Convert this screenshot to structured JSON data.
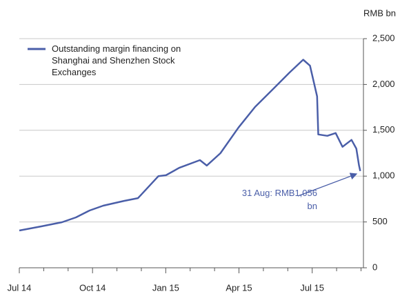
{
  "chart_data": {
    "type": "line",
    "y_axis_label": "RMB bn",
    "annotation": "31 Aug: RMB1,056 bn",
    "series": [
      {
        "name": "Outstanding margin financing on Shanghai and Shenzhen Stock Exchanges",
        "color": "#4a5ea8",
        "x": [
          0,
          0.9,
          1.75,
          2.32,
          2.88,
          3.44,
          4.29,
          4.86,
          5.0,
          5.7,
          6.01,
          6.55,
          7.4,
          7.68,
          8.24,
          8.98,
          9.66,
          10.36,
          11.07,
          11.63,
          11.91,
          12.2,
          12.25,
          12.62,
          12.96,
          13.24,
          13.61,
          13.81,
          13.92,
          13.97
        ],
        "values": [
          407,
          452,
          497,
          550,
          625,
          678,
          730,
          760,
          800,
          1000,
          1010,
          1090,
          1175,
          1115,
          1250,
          1530,
          1755,
          1940,
          2130,
          2270,
          2205,
          1870,
          1455,
          1440,
          1470,
          1320,
          1395,
          1300,
          1115,
          1056
        ]
      }
    ],
    "xlim": [
      0,
      14.1
    ],
    "xticks": [
      {
        "value": 0,
        "label": "Jul 14"
      },
      {
        "value": 3,
        "label": "Oct 14"
      },
      {
        "value": 6,
        "label": "Jan 15"
      },
      {
        "value": 9,
        "label": "Apr 15"
      },
      {
        "value": 12,
        "label": "Jul 15"
      }
    ],
    "xminorticks": [
      1,
      2,
      4,
      5,
      7,
      8,
      10,
      11,
      13,
      14
    ],
    "ylim": [
      0,
      2500
    ],
    "yticks": [
      0,
      500,
      {
        "value": 1000,
        "label": "1,000"
      },
      {
        "value": 1500,
        "label": "1,500"
      },
      {
        "value": 2000,
        "label": "2,000"
      },
      {
        "value": 2500,
        "label": "2,500"
      }
    ],
    "grid": true,
    "y_axis_side": "right"
  }
}
